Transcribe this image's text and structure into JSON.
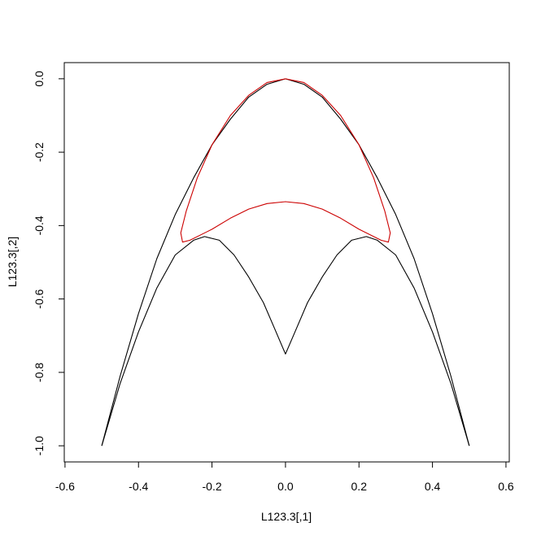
{
  "chart_data": {
    "type": "line",
    "x_label": "L123.3[,1]",
    "y_label": "L123.3[,2]",
    "xlim": [
      -0.602,
      0.609
    ],
    "ylim": [
      -1.044,
      0.044
    ],
    "xticks": [
      -0.6,
      -0.4,
      -0.2,
      {
        "value": 0,
        "label": "0.0"
      },
      0.2,
      0.4,
      0.6
    ],
    "yticks": [
      {
        "value": 0,
        "label": "0.0"
      },
      -0.2,
      -0.4,
      -0.6,
      -0.8,
      {
        "value": -1,
        "label": "-1.0"
      }
    ],
    "series": [
      {
        "color": "#000000",
        "x": [
          -0.5,
          -0.45,
          -0.4,
          -0.35,
          -0.3,
          -0.25,
          -0.2,
          -0.15,
          -0.1,
          -0.05,
          0,
          0.05,
          0.1,
          0.15,
          0.2,
          0.25,
          0.3,
          0.35,
          0.4,
          0.45,
          0.5
        ],
        "values": [
          -1,
          -0.81,
          -0.64,
          -0.49,
          -0.37,
          -0.27,
          -0.18,
          -0.11,
          -0.05,
          -0.015,
          0,
          -0.015,
          -0.05,
          -0.11,
          -0.18,
          -0.27,
          -0.37,
          -0.49,
          -0.64,
          -0.81,
          -1
        ]
      },
      {
        "color": "#000000",
        "x": [
          -0.5,
          -0.45,
          -0.4,
          -0.35,
          -0.3,
          -0.25,
          -0.22,
          -0.18,
          -0.14,
          -0.1,
          -0.06,
          -0.03,
          0,
          0.03,
          0.06,
          0.1,
          0.14,
          0.18,
          0.22,
          0.25,
          0.3,
          0.35,
          0.4,
          0.45,
          0.5
        ],
        "values": [
          -1,
          -0.83,
          -0.69,
          -0.57,
          -0.48,
          -0.44,
          -0.43,
          -0.44,
          -0.48,
          -0.54,
          -0.61,
          -0.68,
          -0.75,
          -0.68,
          -0.61,
          -0.54,
          -0.48,
          -0.44,
          -0.43,
          -0.44,
          -0.48,
          -0.57,
          -0.69,
          -0.83,
          -1
        ]
      },
      {
        "color": "#cc0000",
        "x": [
          0,
          -0.05,
          -0.1,
          -0.15,
          -0.2,
          -0.24,
          -0.27,
          -0.285,
          -0.28,
          -0.26,
          -0.2,
          -0.15,
          -0.1,
          -0.05,
          0,
          0.05,
          0.1,
          0.15,
          0.2,
          0.26,
          0.28,
          0.285,
          0.27,
          0.24,
          0.2,
          0.15,
          0.1,
          0.05,
          0
        ],
        "values": [
          0,
          -0.01,
          -0.045,
          -0.1,
          -0.18,
          -0.27,
          -0.36,
          -0.42,
          -0.445,
          -0.44,
          -0.41,
          -0.38,
          -0.355,
          -0.34,
          -0.335,
          -0.34,
          -0.355,
          -0.38,
          -0.41,
          -0.44,
          -0.445,
          -0.42,
          -0.36,
          -0.27,
          -0.18,
          -0.1,
          -0.045,
          -0.01,
          0
        ]
      }
    ]
  }
}
